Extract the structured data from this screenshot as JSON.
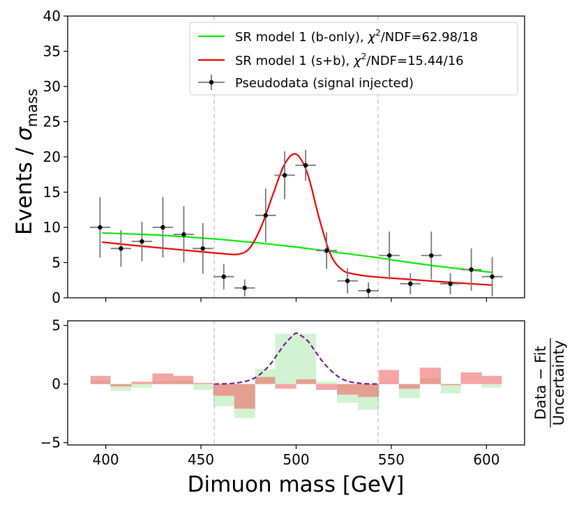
{
  "chart_data": [
    {
      "type": "line",
      "panel": "main",
      "title": "",
      "ylabel_main": "Events / ",
      "ylabel_symbol": "σ",
      "ylabel_sub": "mass",
      "xlim": [
        380,
        620
      ],
      "ylim": [
        0,
        40
      ],
      "yticks": [
        0,
        5,
        10,
        15,
        20,
        25,
        30,
        35,
        40
      ],
      "xticks": [
        400,
        450,
        500,
        550,
        600
      ],
      "vlines": [
        457,
        543
      ],
      "legend_position": "top-right",
      "series": [
        {
          "name": "SR model 1 (b-only)",
          "legend_label": "SR model 1 (b-only), χ²/NDF=62.98/18",
          "legend_prefix": "SR model 1 (b-only), ",
          "legend_chi": "χ",
          "legend_sup": "2",
          "legend_suffix": "/NDF=62.98/18",
          "color": "#00ee00",
          "kind": "curve",
          "x": [
            398,
            420,
            440,
            460,
            480,
            500,
            520,
            540,
            560,
            580,
            603
          ],
          "y": [
            9.2,
            9.0,
            8.7,
            8.3,
            7.8,
            7.2,
            6.5,
            5.8,
            5.0,
            4.3,
            3.6
          ]
        },
        {
          "name": "SR model 1 (s+b)",
          "legend_label": "SR model 1 (s+b), χ²/NDF=15.44/16",
          "legend_prefix": "SR model 1 (s+b), ",
          "legend_chi": "χ",
          "legend_sup": "2",
          "legend_suffix": "/NDF=15.44/16",
          "color": "#ee0000",
          "kind": "curve",
          "x": [
            398,
            420,
            440,
            460,
            470,
            476,
            482,
            488,
            494,
            500,
            506,
            512,
            518,
            524,
            530,
            540,
            560,
            580,
            603
          ],
          "y": [
            7.9,
            7.3,
            6.8,
            6.3,
            6.2,
            7.2,
            10.3,
            14.8,
            19.0,
            20.4,
            17.6,
            11.4,
            6.2,
            4.0,
            3.4,
            3.0,
            2.6,
            2.2,
            1.8
          ]
        },
        {
          "name": "Pseudodata (signal injected)",
          "legend_label": "Pseudodata (signal injected)",
          "color": "#000000",
          "kind": "errorbar",
          "x": [
            397,
            408,
            419,
            430,
            441,
            451,
            462,
            473,
            484,
            494,
            505,
            516,
            527,
            538,
            549,
            560,
            571,
            581,
            592,
            603
          ],
          "y": [
            10,
            7,
            8,
            10,
            9,
            7,
            3,
            1.4,
            11.7,
            17.4,
            18.8,
            6.7,
            2.4,
            1.0,
            6.0,
            2.0,
            6.0,
            2.0,
            4.0,
            3.0
          ],
          "yerr": [
            4.3,
            2.6,
            2.8,
            4.3,
            4.0,
            3.6,
            1.8,
            1.2,
            3.8,
            3.4,
            2.2,
            2.6,
            1.8,
            1.2,
            3.4,
            1.5,
            3.4,
            1.5,
            3.0,
            2.8
          ],
          "xerr": 5.4
        }
      ]
    },
    {
      "type": "bar",
      "panel": "ratio",
      "xlabel": "Dimuon mass [GeV]",
      "ylabel_top": "Data − Fit",
      "ylabel_bottom": "Uncertainty",
      "xlim": [
        380,
        620
      ],
      "ylim": [
        -5.2,
        5.4
      ],
      "yticks": [
        -5,
        0,
        5
      ],
      "ytick_labels": [
        "−5",
        "0",
        "5"
      ],
      "xticks": [
        400,
        450,
        500,
        550,
        600
      ],
      "vlines": [
        457,
        543
      ],
      "bin_edges": [
        392,
        402.5,
        413.5,
        424.5,
        435.5,
        446,
        456.5,
        467.5,
        478.5,
        489,
        500,
        510.5,
        521.5,
        532.5,
        543.5,
        554,
        565,
        576,
        586.5,
        597.5,
        608
      ],
      "series": [
        {
          "name": "b-only residual",
          "color": "#8ee08e",
          "opacity": 0.4,
          "values": [
            0.3,
            -0.6,
            -0.3,
            0.2,
            0.3,
            -0.5,
            -1.9,
            -2.9,
            1.3,
            4.3,
            4.3,
            0.2,
            -1.6,
            -2.2,
            0.1,
            -1.2,
            0.5,
            -0.8,
            0.0,
            -0.3
          ]
        },
        {
          "name": "s+b residual",
          "color": "#f05a5a",
          "opacity": 0.55,
          "values": [
            0.7,
            -0.2,
            0.2,
            0.9,
            0.7,
            0.1,
            -1.0,
            -2.1,
            0.6,
            -0.4,
            0.4,
            -0.5,
            -0.9,
            -1.1,
            1.2,
            -0.4,
            1.4,
            -0.1,
            1.0,
            0.7
          ]
        },
        {
          "name": "signal shape",
          "color": "#7a1a8a",
          "kind": "dashed-curve",
          "x": [
            457,
            466,
            474,
            480,
            486,
            490,
            494,
            498,
            500,
            502,
            506,
            510,
            514,
            520,
            526,
            534,
            543
          ],
          "y": [
            0.0,
            0.05,
            0.25,
            0.7,
            1.6,
            2.5,
            3.4,
            4.1,
            4.35,
            4.2,
            3.7,
            2.8,
            1.9,
            0.9,
            0.3,
            0.05,
            0.0
          ]
        }
      ]
    }
  ]
}
